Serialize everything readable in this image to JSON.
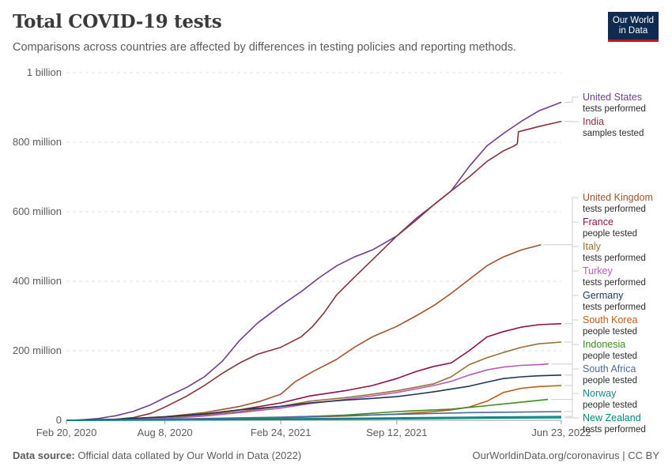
{
  "header": {
    "title": "Total COVID-19 tests",
    "subtitle": "Comparisons across countries are affected by differences in testing policies and reporting methods.",
    "logo_line1": "Our World",
    "logo_line2": "in Data"
  },
  "footer": {
    "source_label": "Data source:",
    "source_text": "Official data collated by Our World in Data (2022)",
    "right_text": "OurWorldinData.org/coronavirus | CC BY"
  },
  "chart_data": {
    "type": "line",
    "title": "Total COVID-19 tests",
    "ylim": [
      0,
      1000000000
    ],
    "y_ticks": [
      {
        "value": 0,
        "label": "0"
      },
      {
        "value": 200000000,
        "label": "200 million"
      },
      {
        "value": 400000000,
        "label": "400 million"
      },
      {
        "value": 600000000,
        "label": "600 million"
      },
      {
        "value": 800000000,
        "label": "800 million"
      },
      {
        "value": 1000000000,
        "label": "1 billion"
      }
    ],
    "x_ticks": [
      {
        "value": "2020-02-20",
        "label": "Feb 20, 2020"
      },
      {
        "value": "2020-08-08",
        "label": "Aug 8, 2020"
      },
      {
        "value": "2021-02-24",
        "label": "Feb 24, 2021"
      },
      {
        "value": "2021-09-12",
        "label": "Sep 12, 2021"
      },
      {
        "value": "2022-06-23",
        "label": "Jun 23, 2022"
      }
    ],
    "grid": true,
    "legend": "right, line-end labels",
    "series": [
      {
        "name": "United States",
        "unit": "tests performed",
        "color": "#6d3e91",
        "points": [
          [
            "2020-02-20",
            0
          ],
          [
            "2020-03-15",
            1000000
          ],
          [
            "2020-04-15",
            5000000
          ],
          [
            "2020-05-15",
            13000000
          ],
          [
            "2020-06-15",
            26000000
          ],
          [
            "2020-07-15",
            45000000
          ],
          [
            "2020-08-08",
            65000000
          ],
          [
            "2020-09-15",
            95000000
          ],
          [
            "2020-10-15",
            125000000
          ],
          [
            "2020-11-15",
            170000000
          ],
          [
            "2020-12-15",
            230000000
          ],
          [
            "2021-01-15",
            280000000
          ],
          [
            "2021-02-24",
            330000000
          ],
          [
            "2021-03-31",
            370000000
          ],
          [
            "2021-05-01",
            410000000
          ],
          [
            "2021-06-01",
            445000000
          ],
          [
            "2021-07-01",
            470000000
          ],
          [
            "2021-08-01",
            490000000
          ],
          [
            "2021-09-12",
            530000000
          ],
          [
            "2021-10-15",
            580000000
          ],
          [
            "2021-11-15",
            620000000
          ],
          [
            "2021-12-15",
            660000000
          ],
          [
            "2022-01-15",
            730000000
          ],
          [
            "2022-02-15",
            790000000
          ],
          [
            "2022-03-15",
            825000000
          ],
          [
            "2022-04-15",
            860000000
          ],
          [
            "2022-05-15",
            890000000
          ],
          [
            "2022-06-23",
            915000000
          ]
        ]
      },
      {
        "name": "India",
        "unit": "samples tested",
        "color": "#883039",
        "points": [
          [
            "2020-02-20",
            0
          ],
          [
            "2020-04-15",
            1000000
          ],
          [
            "2020-05-15",
            3000000
          ],
          [
            "2020-06-15",
            8000000
          ],
          [
            "2020-07-15",
            20000000
          ],
          [
            "2020-08-08",
            38000000
          ],
          [
            "2020-09-15",
            70000000
          ],
          [
            "2020-10-15",
            100000000
          ],
          [
            "2020-11-15",
            135000000
          ],
          [
            "2020-12-15",
            165000000
          ],
          [
            "2021-01-15",
            190000000
          ],
          [
            "2021-02-24",
            210000000
          ],
          [
            "2021-03-31",
            240000000
          ],
          [
            "2021-04-20",
            270000000
          ],
          [
            "2021-05-10",
            310000000
          ],
          [
            "2021-05-31",
            360000000
          ],
          [
            "2021-06-30",
            410000000
          ],
          [
            "2021-07-31",
            460000000
          ],
          [
            "2021-09-12",
            530000000
          ],
          [
            "2021-10-15",
            575000000
          ],
          [
            "2021-11-15",
            620000000
          ],
          [
            "2021-12-15",
            660000000
          ],
          [
            "2022-01-15",
            700000000
          ],
          [
            "2022-02-15",
            745000000
          ],
          [
            "2022-03-15",
            775000000
          ],
          [
            "2022-04-01",
            788000000
          ],
          [
            "2022-04-08",
            795000000
          ],
          [
            "2022-04-10",
            830000000
          ],
          [
            "2022-05-15",
            845000000
          ],
          [
            "2022-06-23",
            860000000
          ]
        ]
      },
      {
        "name": "United Kingdom",
        "unit": "tests performed",
        "color": "#a2522e",
        "points": [
          [
            "2020-02-20",
            0
          ],
          [
            "2020-05-15",
            2000000
          ],
          [
            "2020-08-08",
            10000000
          ],
          [
            "2020-10-15",
            22000000
          ],
          [
            "2020-12-15",
            40000000
          ],
          [
            "2021-01-20",
            55000000
          ],
          [
            "2021-02-24",
            75000000
          ],
          [
            "2021-03-20",
            110000000
          ],
          [
            "2021-04-20",
            140000000
          ],
          [
            "2021-05-31",
            175000000
          ],
          [
            "2021-07-01",
            210000000
          ],
          [
            "2021-08-01",
            240000000
          ],
          [
            "2021-09-12",
            270000000
          ],
          [
            "2021-10-15",
            300000000
          ],
          [
            "2021-11-15",
            330000000
          ],
          [
            "2021-12-15",
            365000000
          ],
          [
            "2022-01-15",
            405000000
          ],
          [
            "2022-02-15",
            445000000
          ],
          [
            "2022-03-15",
            470000000
          ],
          [
            "2022-04-15",
            490000000
          ],
          [
            "2022-05-19",
            505000000
          ]
        ]
      },
      {
        "name": "France",
        "unit": "people tested",
        "color": "#930e49",
        "points": [
          [
            "2020-02-20",
            0
          ],
          [
            "2020-05-15",
            1000000
          ],
          [
            "2020-08-08",
            8000000
          ],
          [
            "2020-10-15",
            18000000
          ],
          [
            "2020-12-15",
            30000000
          ],
          [
            "2021-02-24",
            50000000
          ],
          [
            "2021-04-15",
            70000000
          ],
          [
            "2021-06-15",
            85000000
          ],
          [
            "2021-08-01",
            100000000
          ],
          [
            "2021-09-12",
            120000000
          ],
          [
            "2021-10-15",
            140000000
          ],
          [
            "2021-11-15",
            155000000
          ],
          [
            "2021-12-15",
            165000000
          ],
          [
            "2022-01-15",
            200000000
          ],
          [
            "2022-02-15",
            240000000
          ],
          [
            "2022-03-15",
            255000000
          ],
          [
            "2022-04-15",
            268000000
          ],
          [
            "2022-05-15",
            275000000
          ],
          [
            "2022-06-23",
            278000000
          ]
        ]
      },
      {
        "name": "Italy",
        "unit": "tests performed",
        "color": "#9a6e37",
        "points": [
          [
            "2020-02-20",
            0
          ],
          [
            "2020-05-15",
            3000000
          ],
          [
            "2020-08-08",
            8000000
          ],
          [
            "2020-10-15",
            15000000
          ],
          [
            "2020-12-15",
            25000000
          ],
          [
            "2021-02-24",
            40000000
          ],
          [
            "2021-04-15",
            55000000
          ],
          [
            "2021-06-15",
            65000000
          ],
          [
            "2021-08-01",
            75000000
          ],
          [
            "2021-09-12",
            85000000
          ],
          [
            "2021-10-15",
            95000000
          ],
          [
            "2021-11-15",
            105000000
          ],
          [
            "2021-12-15",
            125000000
          ],
          [
            "2022-01-15",
            160000000
          ],
          [
            "2022-02-15",
            180000000
          ],
          [
            "2022-03-15",
            195000000
          ],
          [
            "2022-04-15",
            210000000
          ],
          [
            "2022-05-15",
            220000000
          ],
          [
            "2022-06-23",
            225000000
          ]
        ]
      },
      {
        "name": "Turkey",
        "unit": "tests performed",
        "color": "#b45cb7",
        "points": [
          [
            "2020-02-20",
            0
          ],
          [
            "2020-05-15",
            1000000
          ],
          [
            "2020-08-08",
            5000000
          ],
          [
            "2020-10-15",
            12000000
          ],
          [
            "2020-12-15",
            22000000
          ],
          [
            "2021-02-24",
            35000000
          ],
          [
            "2021-04-15",
            48000000
          ],
          [
            "2021-06-15",
            60000000
          ],
          [
            "2021-08-01",
            70000000
          ],
          [
            "2021-09-12",
            80000000
          ],
          [
            "2021-10-15",
            90000000
          ],
          [
            "2021-11-15",
            100000000
          ],
          [
            "2021-12-15",
            112000000
          ],
          [
            "2022-01-15",
            130000000
          ],
          [
            "2022-02-15",
            145000000
          ],
          [
            "2022-03-15",
            153000000
          ],
          [
            "2022-04-15",
            158000000
          ],
          [
            "2022-05-15",
            160000000
          ],
          [
            "2022-06-01",
            162000000
          ]
        ]
      },
      {
        "name": "Germany",
        "unit": "tests performed",
        "color": "#1b3855",
        "points": [
          [
            "2020-02-20",
            0
          ],
          [
            "2020-05-15",
            3000000
          ],
          [
            "2020-08-08",
            10000000
          ],
          [
            "2020-10-15",
            18000000
          ],
          [
            "2020-12-15",
            30000000
          ],
          [
            "2021-02-24",
            40000000
          ],
          [
            "2021-04-15",
            50000000
          ],
          [
            "2021-06-15",
            58000000
          ],
          [
            "2021-08-01",
            63000000
          ],
          [
            "2021-09-12",
            68000000
          ],
          [
            "2021-10-15",
            75000000
          ],
          [
            "2021-11-15",
            82000000
          ],
          [
            "2021-12-15",
            90000000
          ],
          [
            "2022-01-15",
            98000000
          ],
          [
            "2022-02-15",
            110000000
          ],
          [
            "2022-03-15",
            120000000
          ],
          [
            "2022-04-15",
            125000000
          ],
          [
            "2022-05-15",
            128000000
          ],
          [
            "2022-06-23",
            130000000
          ]
        ]
      },
      {
        "name": "South Korea",
        "unit": "people tested",
        "color": "#c05917",
        "points": [
          [
            "2020-02-20",
            0
          ],
          [
            "2020-05-15",
            1000000
          ],
          [
            "2020-08-08",
            2000000
          ],
          [
            "2020-12-15",
            4000000
          ],
          [
            "2021-02-24",
            7000000
          ],
          [
            "2021-06-15",
            12000000
          ],
          [
            "2021-09-12",
            18000000
          ],
          [
            "2021-11-15",
            25000000
          ],
          [
            "2021-12-15",
            30000000
          ],
          [
            "2022-01-15",
            38000000
          ],
          [
            "2022-02-15",
            55000000
          ],
          [
            "2022-03-15",
            80000000
          ],
          [
            "2022-04-15",
            92000000
          ],
          [
            "2022-05-15",
            97000000
          ],
          [
            "2022-06-23",
            100000000
          ]
        ]
      },
      {
        "name": "Indonesia",
        "unit": "people tested",
        "color": "#3b8e1e",
        "points": [
          [
            "2020-02-20",
            0
          ],
          [
            "2020-08-08",
            1000000
          ],
          [
            "2020-12-15",
            4000000
          ],
          [
            "2021-02-24",
            8000000
          ],
          [
            "2021-06-15",
            15000000
          ],
          [
            "2021-09-12",
            25000000
          ],
          [
            "2021-12-15",
            32000000
          ],
          [
            "2022-02-15",
            42000000
          ],
          [
            "2022-04-15",
            52000000
          ],
          [
            "2022-05-31",
            60000000
          ]
        ]
      },
      {
        "name": "South Africa",
        "unit": "people tested",
        "color": "#4c6a9c",
        "points": [
          [
            "2020-02-20",
            0
          ],
          [
            "2020-08-08",
            3000000
          ],
          [
            "2020-12-15",
            7000000
          ],
          [
            "2021-02-24",
            9000000
          ],
          [
            "2021-09-12",
            17000000
          ],
          [
            "2022-01-15",
            22000000
          ],
          [
            "2022-06-23",
            25000000
          ]
        ]
      },
      {
        "name": "Norway",
        "unit": "people tested",
        "color": "#18868e",
        "points": [
          [
            "2020-02-20",
            0
          ],
          [
            "2020-08-08",
            1000000
          ],
          [
            "2020-12-15",
            3000000
          ],
          [
            "2021-02-24",
            4000000
          ],
          [
            "2021-09-12",
            7000000
          ],
          [
            "2022-01-15",
            9000000
          ],
          [
            "2022-06-23",
            11000000
          ]
        ]
      },
      {
        "name": "New Zealand",
        "unit": "tests performed",
        "color": "#00847e",
        "points": [
          [
            "2020-02-20",
            0
          ],
          [
            "2020-08-08",
            500000
          ],
          [
            "2020-12-15",
            1500000
          ],
          [
            "2021-02-24",
            2000000
          ],
          [
            "2021-09-12",
            4000000
          ],
          [
            "2022-01-15",
            6000000
          ],
          [
            "2022-06-23",
            7000000
          ]
        ]
      }
    ]
  }
}
